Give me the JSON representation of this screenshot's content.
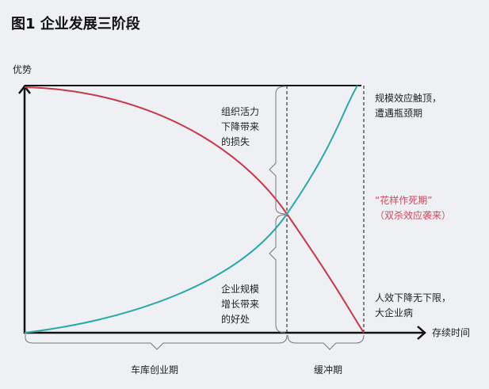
{
  "title": "图1  企业发展三阶段",
  "y_axis_label": "优势",
  "x_axis_label": "存续时间",
  "annotations": {
    "loss": "组织活力\n下降带来\n的损失",
    "benefit": "企业规模\n增长带来\n的好处",
    "bottleneck": "规模效应触顶，\n遭遇瓶颈期",
    "death_period": "“花样作死期”\n（双杀效应袭来）",
    "big_company": "人效下降无下限，\n大企业病"
  },
  "phases": [
    "车库创业期",
    "缓冲期"
  ],
  "colors": {
    "vitality_curve": "#c8384a",
    "scale_curve": "#2aa9a9",
    "axis": "#111111"
  }
}
